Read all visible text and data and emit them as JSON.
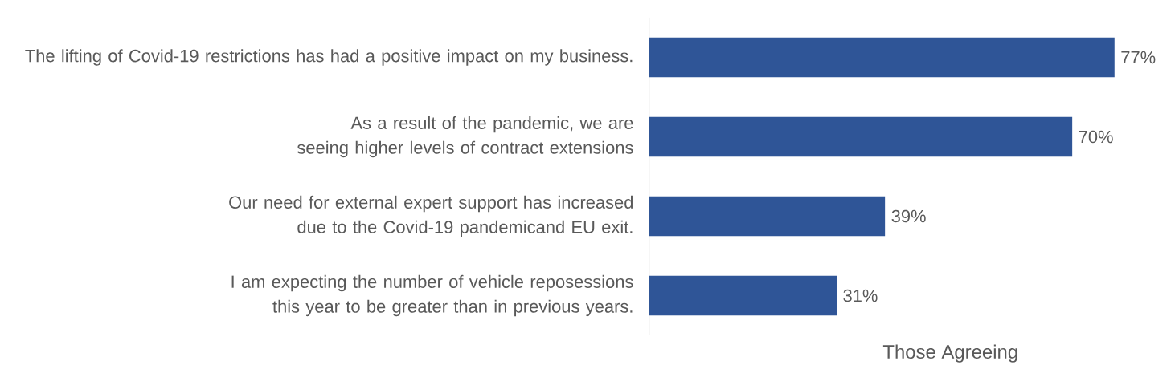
{
  "chart_data": {
    "type": "bar",
    "orientation": "horizontal",
    "xlabel": "Those Agreeing",
    "categories": [
      "The lifting of Covid-19 restrictions has had a positive impact on my business.",
      "As a result of the pandemic, we are seeing higher levels of contract extensions",
      "Our need for external expert support has increased due to the Covid-19 pandemicand EU exit.",
      "I am expecting the number of vehicle reposessions this year to be greater than in previous years."
    ],
    "values": [
      77,
      70,
      39,
      31
    ],
    "value_labels": [
      "77%",
      "70%",
      "39%",
      "31%"
    ],
    "color": "#2f5597"
  }
}
